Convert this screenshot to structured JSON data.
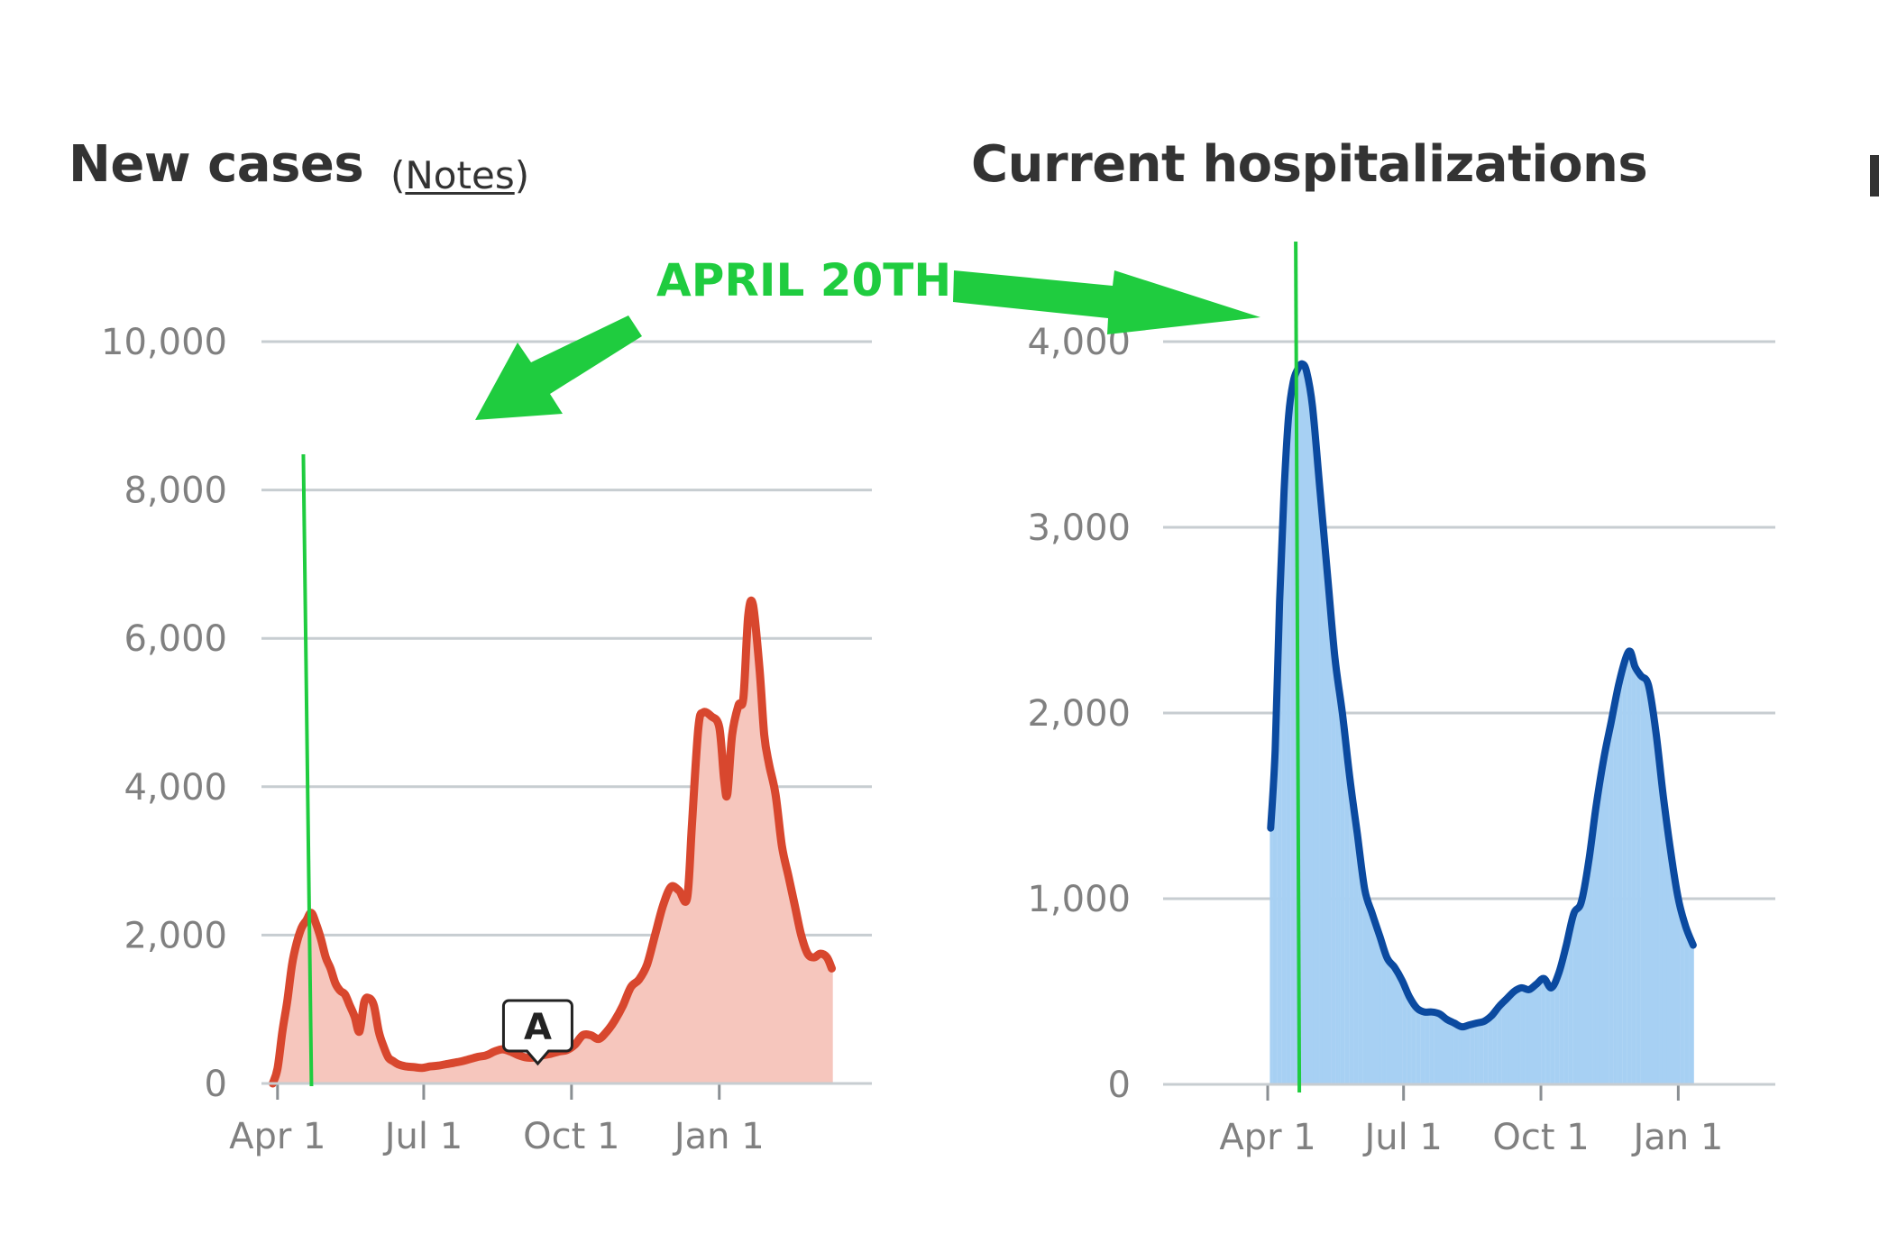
{
  "titles": {
    "left": "New cases",
    "left_notes_open": "(",
    "left_notes_link": "Notes",
    "left_notes_close": ")",
    "right": "Current hospitalizations"
  },
  "annotation": {
    "label": "APRIL 20TH",
    "color": "#1fcc3f"
  },
  "chart_data": [
    {
      "type": "bar",
      "title": "New cases",
      "xlabel": "",
      "ylabel": "",
      "x_ticks": [
        "Apr 1",
        "Jul 1",
        "Oct 1",
        "Jan 1"
      ],
      "y_ticks": [
        "0",
        "2,000",
        "4,000",
        "6,000",
        "8,000",
        "10,000"
      ],
      "ylim": [
        0,
        10000
      ],
      "x_domain_days": [
        -10,
        370
      ],
      "grid": true,
      "bar_color": "#f6c6bd",
      "line_color": "#d8472e",
      "marker_label": "A",
      "marker_day": 162,
      "vline_day": 20,
      "daily_new_cases": [
        [
          -3,
          0
        ],
        [
          0,
          200
        ],
        [
          3,
          700
        ],
        [
          6,
          1100
        ],
        [
          9,
          1600
        ],
        [
          12,
          1900
        ],
        [
          15,
          2100
        ],
        [
          18,
          2200
        ],
        [
          21,
          2300
        ],
        [
          24,
          2150
        ],
        [
          27,
          1950
        ],
        [
          30,
          1700
        ],
        [
          33,
          1550
        ],
        [
          36,
          1350
        ],
        [
          39,
          1250
        ],
        [
          42,
          1200
        ],
        [
          45,
          1050
        ],
        [
          48,
          900
        ],
        [
          51,
          700
        ],
        [
          54,
          1100
        ],
        [
          57,
          1150
        ],
        [
          60,
          1050
        ],
        [
          63,
          700
        ],
        [
          66,
          500
        ],
        [
          69,
          350
        ],
        [
          72,
          300
        ],
        [
          75,
          260
        ],
        [
          80,
          230
        ],
        [
          85,
          220
        ],
        [
          90,
          210
        ],
        [
          95,
          230
        ],
        [
          100,
          240
        ],
        [
          105,
          260
        ],
        [
          110,
          280
        ],
        [
          115,
          300
        ],
        [
          120,
          330
        ],
        [
          125,
          360
        ],
        [
          130,
          380
        ],
        [
          135,
          430
        ],
        [
          140,
          460
        ],
        [
          145,
          430
        ],
        [
          150,
          380
        ],
        [
          155,
          350
        ],
        [
          160,
          350
        ],
        [
          165,
          380
        ],
        [
          170,
          400
        ],
        [
          175,
          430
        ],
        [
          180,
          450
        ],
        [
          185,
          520
        ],
        [
          190,
          650
        ],
        [
          195,
          650
        ],
        [
          200,
          600
        ],
        [
          205,
          700
        ],
        [
          210,
          850
        ],
        [
          215,
          1050
        ],
        [
          220,
          1300
        ],
        [
          225,
          1400
        ],
        [
          230,
          1600
        ],
        [
          235,
          2000
        ],
        [
          240,
          2400
        ],
        [
          245,
          2650
        ],
        [
          250,
          2600
        ],
        [
          255,
          2500
        ],
        [
          258,
          3500
        ],
        [
          262,
          4800
        ],
        [
          265,
          5000
        ],
        [
          270,
          4950
        ],
        [
          275,
          4800
        ],
        [
          278,
          4100
        ],
        [
          280,
          3900
        ],
        [
          283,
          4700
        ],
        [
          287,
          5100
        ],
        [
          290,
          5200
        ],
        [
          293,
          6300
        ],
        [
          296,
          6450
        ],
        [
          300,
          5600
        ],
        [
          303,
          4700
        ],
        [
          306,
          4300
        ],
        [
          310,
          3900
        ],
        [
          314,
          3200
        ],
        [
          318,
          2800
        ],
        [
          322,
          2400
        ],
        [
          326,
          2000
        ],
        [
          330,
          1750
        ],
        [
          334,
          1700
        ],
        [
          338,
          1750
        ],
        [
          342,
          1700
        ],
        [
          345,
          1550
        ]
      ],
      "seven_day_average": [
        [
          -3,
          0
        ],
        [
          0,
          200
        ],
        [
          3,
          700
        ],
        [
          6,
          1100
        ],
        [
          9,
          1600
        ],
        [
          12,
          1900
        ],
        [
          15,
          2100
        ],
        [
          18,
          2200
        ],
        [
          21,
          2300
        ],
        [
          24,
          2150
        ],
        [
          27,
          1950
        ],
        [
          30,
          1700
        ],
        [
          33,
          1550
        ],
        [
          36,
          1350
        ],
        [
          39,
          1250
        ],
        [
          42,
          1200
        ],
        [
          45,
          1050
        ],
        [
          48,
          900
        ],
        [
          51,
          700
        ],
        [
          54,
          1100
        ],
        [
          57,
          1150
        ],
        [
          60,
          1050
        ],
        [
          63,
          700
        ],
        [
          66,
          500
        ],
        [
          69,
          350
        ],
        [
          72,
          300
        ],
        [
          75,
          260
        ],
        [
          80,
          230
        ],
        [
          85,
          220
        ],
        [
          90,
          210
        ],
        [
          95,
          230
        ],
        [
          100,
          240
        ],
        [
          105,
          260
        ],
        [
          110,
          280
        ],
        [
          115,
          300
        ],
        [
          120,
          330
        ],
        [
          125,
          360
        ],
        [
          130,
          380
        ],
        [
          135,
          430
        ],
        [
          140,
          460
        ],
        [
          145,
          430
        ],
        [
          150,
          380
        ],
        [
          155,
          350
        ],
        [
          160,
          350
        ],
        [
          165,
          380
        ],
        [
          170,
          400
        ],
        [
          175,
          430
        ],
        [
          180,
          450
        ],
        [
          185,
          520
        ],
        [
          190,
          650
        ],
        [
          195,
          650
        ],
        [
          200,
          600
        ],
        [
          205,
          700
        ],
        [
          210,
          850
        ],
        [
          215,
          1050
        ],
        [
          220,
          1300
        ],
        [
          225,
          1400
        ],
        [
          230,
          1600
        ],
        [
          235,
          2000
        ],
        [
          240,
          2400
        ],
        [
          245,
          2650
        ],
        [
          250,
          2600
        ],
        [
          255,
          2500
        ],
        [
          258,
          3500
        ],
        [
          262,
          4800
        ],
        [
          265,
          5000
        ],
        [
          270,
          4950
        ],
        [
          275,
          4800
        ],
        [
          278,
          4100
        ],
        [
          280,
          3900
        ],
        [
          283,
          4700
        ],
        [
          287,
          5100
        ],
        [
          290,
          5200
        ],
        [
          293,
          6300
        ],
        [
          296,
          6450
        ],
        [
          300,
          5600
        ],
        [
          303,
          4700
        ],
        [
          306,
          4300
        ],
        [
          310,
          3900
        ],
        [
          314,
          3200
        ],
        [
          318,
          2800
        ],
        [
          322,
          2400
        ],
        [
          326,
          2000
        ],
        [
          330,
          1750
        ],
        [
          334,
          1700
        ],
        [
          338,
          1750
        ],
        [
          342,
          1700
        ],
        [
          345,
          1550
        ]
      ]
    },
    {
      "type": "area",
      "title": "Current hospitalizations",
      "xlabel": "",
      "ylabel": "",
      "x_ticks": [
        "Apr 1",
        "Jul 1",
        "Oct 1",
        "Jan 1"
      ],
      "y_ticks": [
        "0",
        "1,000",
        "2,000",
        "3,000",
        "4,000"
      ],
      "ylim": [
        0,
        4000
      ],
      "x_domain_days": [
        0,
        340
      ],
      "grid": true,
      "area_color": "#a7d0f3",
      "line_color": "#0b4aa0",
      "vline_day": 20,
      "hospitalizations": [
        [
          2,
          1380
        ],
        [
          5,
          1800
        ],
        [
          8,
          2600
        ],
        [
          11,
          3200
        ],
        [
          14,
          3600
        ],
        [
          17,
          3780
        ],
        [
          20,
          3850
        ],
        [
          23,
          3880
        ],
        [
          26,
          3840
        ],
        [
          30,
          3650
        ],
        [
          35,
          3200
        ],
        [
          40,
          2750
        ],
        [
          45,
          2300
        ],
        [
          50,
          2000
        ],
        [
          55,
          1650
        ],
        [
          60,
          1350
        ],
        [
          65,
          1050
        ],
        [
          70,
          920
        ],
        [
          75,
          800
        ],
        [
          80,
          680
        ],
        [
          85,
          630
        ],
        [
          90,
          560
        ],
        [
          95,
          470
        ],
        [
          100,
          410
        ],
        [
          105,
          390
        ],
        [
          110,
          390
        ],
        [
          115,
          380
        ],
        [
          120,
          350
        ],
        [
          125,
          330
        ],
        [
          130,
          310
        ],
        [
          135,
          320
        ],
        [
          140,
          330
        ],
        [
          145,
          340
        ],
        [
          150,
          370
        ],
        [
          155,
          420
        ],
        [
          160,
          460
        ],
        [
          165,
          500
        ],
        [
          170,
          520
        ],
        [
          175,
          510
        ],
        [
          180,
          540
        ],
        [
          185,
          570
        ],
        [
          190,
          520
        ],
        [
          195,
          600
        ],
        [
          200,
          750
        ],
        [
          205,
          920
        ],
        [
          210,
          980
        ],
        [
          215,
          1200
        ],
        [
          220,
          1500
        ],
        [
          225,
          1750
        ],
        [
          230,
          1950
        ],
        [
          235,
          2150
        ],
        [
          240,
          2300
        ],
        [
          243,
          2330
        ],
        [
          246,
          2250
        ],
        [
          250,
          2200
        ],
        [
          255,
          2150
        ],
        [
          260,
          1900
        ],
        [
          265,
          1550
        ],
        [
          270,
          1250
        ],
        [
          275,
          1000
        ],
        [
          280,
          850
        ],
        [
          285,
          750
        ]
      ]
    }
  ]
}
